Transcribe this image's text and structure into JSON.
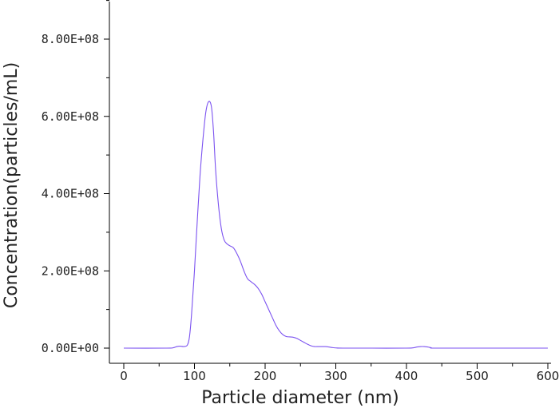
{
  "chart_data": {
    "type": "line",
    "title": "",
    "xlabel": "Particle diameter (nm)",
    "ylabel": "Concentration(particles/mL)",
    "xlim": [
      0,
      600
    ],
    "ylim": [
      0,
      900000000
    ],
    "grid": false,
    "legend": "none",
    "x_ticks": [
      0,
      100,
      200,
      300,
      400,
      500,
      600
    ],
    "x_tick_labels": [
      "0",
      "100",
      "200",
      "300",
      "400",
      "500",
      "600"
    ],
    "y_ticks": [
      0,
      200000000,
      400000000,
      600000000,
      800000000
    ],
    "y_tick_labels": [
      "0.00E+00",
      "2.00E+08",
      "4.00E+08",
      "6.00E+08",
      "8.00E+08"
    ],
    "series": [
      {
        "color": "#7b52f0",
        "x": [
          0,
          60,
          70,
          75,
          80,
          85,
          90,
          93,
          96,
          100,
          104,
          108,
          112,
          116,
          120,
          124,
          127,
          130,
          134,
          138,
          142,
          146,
          150,
          155,
          160,
          165,
          170,
          175,
          180,
          185,
          190,
          195,
          200,
          205,
          210,
          215,
          220,
          225,
          230,
          235,
          240,
          245,
          250,
          255,
          260,
          265,
          270,
          275,
          280,
          285,
          290,
          295,
          300,
          310,
          350,
          400,
          410,
          415,
          420,
          425,
          430,
          435,
          440,
          500,
          600
        ],
        "y": [
          0,
          0,
          1000000,
          4000000,
          5000000,
          4000000,
          8000000,
          30000000,
          90000000,
          200000000,
          330000000,
          450000000,
          540000000,
          610000000,
          638000000,
          625000000,
          560000000,
          460000000,
          370000000,
          310000000,
          280000000,
          270000000,
          265000000,
          260000000,
          245000000,
          225000000,
          200000000,
          180000000,
          172000000,
          165000000,
          155000000,
          140000000,
          120000000,
          100000000,
          80000000,
          60000000,
          45000000,
          35000000,
          30000000,
          29000000,
          28000000,
          25000000,
          20000000,
          15000000,
          10000000,
          6000000,
          4000000,
          4000000,
          4000000,
          4000000,
          3000000,
          1500000,
          500000,
          0,
          0,
          0,
          1000000,
          3000000,
          4000000,
          4000000,
          3000000,
          1000000,
          0,
          0,
          0
        ]
      }
    ]
  }
}
